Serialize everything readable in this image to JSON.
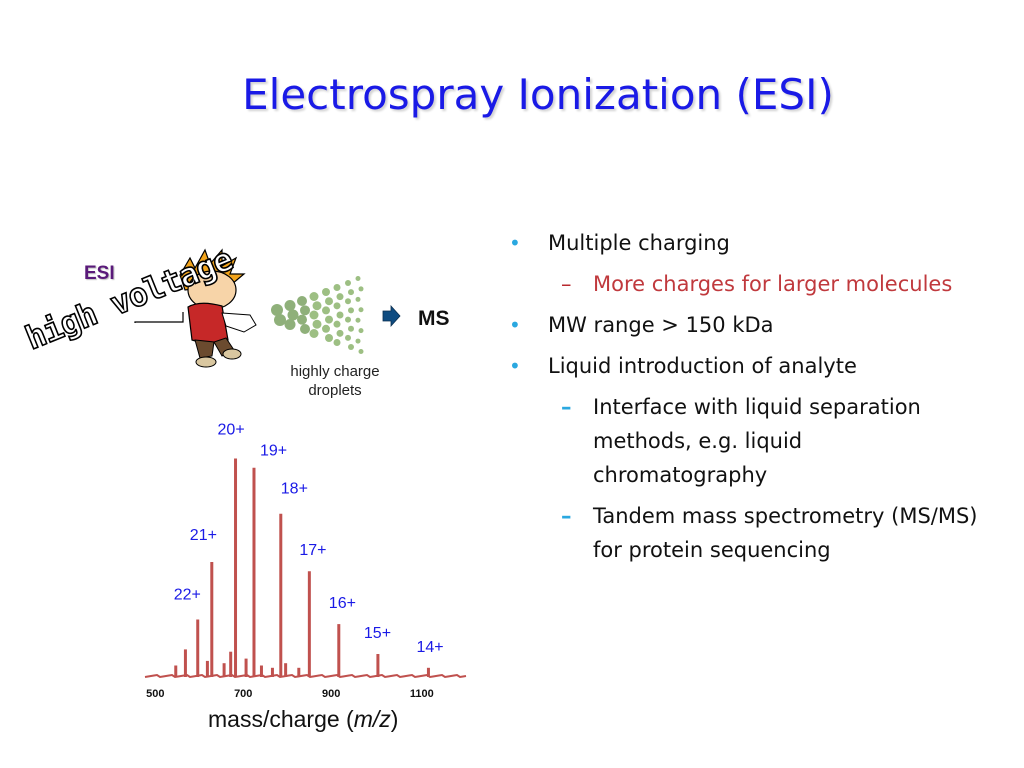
{
  "title": "Electrospray Ionization (ESI)",
  "bullets": [
    {
      "level": 1,
      "text": "Multiple charging"
    },
    {
      "level": 2,
      "text": "More charges for larger molecules",
      "color": "#c0393d"
    },
    {
      "level": 1,
      "text": "MW range > 150 kDa"
    },
    {
      "level": 1,
      "text": "Liquid introduction of analyte"
    },
    {
      "level": 2,
      "text": "Interface with liquid separation methods, e.g. liquid chromatography"
    },
    {
      "level": 2,
      "text": "Tandem mass spectrometry (MS/MS) for protein sequencing"
    }
  ],
  "diagram": {
    "esi_label": "ESI",
    "voltage_label": "high voltage",
    "droplet_label_line1": "highly charge",
    "droplet_label_line2": "droplets",
    "ms_label": "MS",
    "arrow_icon": "arrow-right-icon"
  },
  "chart_data": {
    "type": "bar",
    "xlabel_text": "mass/charge (",
    "xlabel_italic": "m/z",
    "xlabel_close": ")",
    "xlim": [
      470,
      1205
    ],
    "ticks": [
      500,
      700,
      900,
      1100
    ],
    "ylim": [
      0,
      100
    ],
    "peaks": [
      {
        "label": "22+",
        "x": 590,
        "y": 25
      },
      {
        "label": "21+",
        "x": 622,
        "y": 50
      },
      {
        "label": "20+",
        "x": 676,
        "y": 95
      },
      {
        "label": "19+",
        "x": 718,
        "y": 91
      },
      {
        "label": "18+",
        "x": 779,
        "y": 71
      },
      {
        "label": "17+",
        "x": 844,
        "y": 46
      },
      {
        "label": "16+",
        "x": 911,
        "y": 23
      },
      {
        "label": "15+",
        "x": 1000,
        "y": 10
      },
      {
        "label": "14+",
        "x": 1115,
        "y": 4
      }
    ],
    "minor_peaks": [
      {
        "x": 540,
        "y": 5
      },
      {
        "x": 562,
        "y": 12
      },
      {
        "x": 612,
        "y": 7
      },
      {
        "x": 650,
        "y": 6
      },
      {
        "x": 665,
        "y": 11
      },
      {
        "x": 700,
        "y": 8
      },
      {
        "x": 735,
        "y": 5
      },
      {
        "x": 760,
        "y": 4
      },
      {
        "x": 790,
        "y": 6
      },
      {
        "x": 820,
        "y": 4
      }
    ],
    "line_color": "#c0514e"
  }
}
